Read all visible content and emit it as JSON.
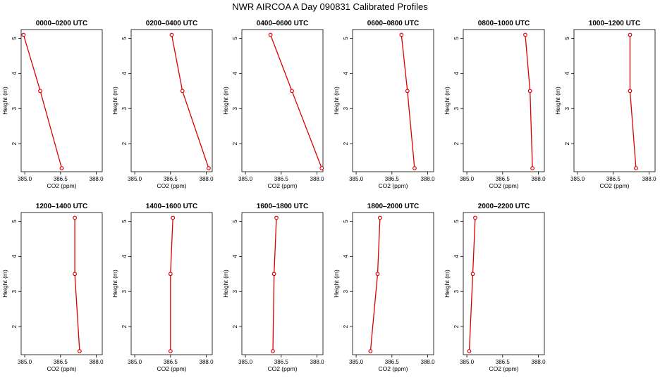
{
  "title": "NWR AIRCOA A  Day 090831  Calibrated Profiles",
  "colors": {
    "series": "#dd0000",
    "axis": "#000000"
  },
  "chart_data": [
    {
      "type": "line",
      "title": "0000–0200 UTC",
      "xlabel": "CO2 (ppm)",
      "ylabel": "Height (m)",
      "xlim": [
        384.85,
        388.25
      ],
      "ylim": [
        1.2,
        5.25
      ],
      "xticks": [
        "385.0",
        "386.5",
        "388.0"
      ],
      "yticks": [
        "2",
        "3",
        "4",
        "5"
      ],
      "x": [
        384.95,
        385.65,
        386.55
      ],
      "y": [
        5.1,
        3.5,
        1.3
      ]
    },
    {
      "type": "line",
      "title": "0200–0400 UTC",
      "xlabel": "CO2 (ppm)",
      "ylabel": "Height (m)",
      "xlim": [
        384.85,
        388.25
      ],
      "ylim": [
        1.2,
        5.25
      ],
      "xticks": [
        "385.0",
        "386.5",
        "388.0"
      ],
      "yticks": [
        "2",
        "3",
        "4",
        "5"
      ],
      "x": [
        386.55,
        387.0,
        388.1
      ],
      "y": [
        5.1,
        3.5,
        1.3
      ]
    },
    {
      "type": "line",
      "title": "0400–0600 UTC",
      "xlabel": "CO2 (ppm)",
      "ylabel": "Height (m)",
      "xlim": [
        384.85,
        388.25
      ],
      "ylim": [
        1.2,
        5.25
      ],
      "xticks": [
        "385.0",
        "386.5",
        "388.0"
      ],
      "yticks": [
        "2",
        "3",
        "4",
        "5"
      ],
      "x": [
        386.05,
        386.95,
        388.2
      ],
      "y": [
        5.1,
        3.5,
        1.3
      ]
    },
    {
      "type": "line",
      "title": "0600–0800 UTC",
      "xlabel": "CO2 (ppm)",
      "ylabel": "Height (m)",
      "xlim": [
        384.85,
        388.25
      ],
      "ylim": [
        1.2,
        5.25
      ],
      "xticks": [
        "385.0",
        "386.5",
        "388.0"
      ],
      "yticks": [
        "2",
        "3",
        "4",
        "5"
      ],
      "x": [
        386.9,
        387.15,
        387.45
      ],
      "y": [
        5.1,
        3.5,
        1.3
      ]
    },
    {
      "type": "line",
      "title": "0800–1000 UTC",
      "xlabel": "CO2 (ppm)",
      "ylabel": "Height (m)",
      "xlim": [
        384.85,
        388.25
      ],
      "ylim": [
        1.2,
        5.25
      ],
      "xticks": [
        "385.0",
        "386.5",
        "388.0"
      ],
      "yticks": [
        "2",
        "3",
        "4",
        "5"
      ],
      "x": [
        387.45,
        387.65,
        387.75
      ],
      "y": [
        5.1,
        3.5,
        1.3
      ]
    },
    {
      "type": "line",
      "title": "1000–1200 UTC",
      "xlabel": "CO2 (ppm)",
      "ylabel": "Height (m)",
      "xlim": [
        384.85,
        388.25
      ],
      "ylim": [
        1.2,
        5.25
      ],
      "xticks": [
        "385.0",
        "386.5",
        "388.0"
      ],
      "yticks": [
        "2",
        "3",
        "4",
        "5"
      ],
      "x": [
        387.2,
        387.2,
        387.45
      ],
      "y": [
        5.1,
        3.5,
        1.3
      ]
    },
    {
      "type": "line",
      "title": "1200–1400 UTC",
      "xlabel": "CO2 (ppm)",
      "ylabel": "Height (m)",
      "xlim": [
        384.85,
        388.25
      ],
      "ylim": [
        1.2,
        5.25
      ],
      "xticks": [
        "385.0",
        "386.5",
        "388.0"
      ],
      "yticks": [
        "2",
        "3",
        "4",
        "5"
      ],
      "x": [
        387.1,
        387.1,
        387.3
      ],
      "y": [
        5.1,
        3.5,
        1.3
      ]
    },
    {
      "type": "line",
      "title": "1400–1600 UTC",
      "xlabel": "CO2 (ppm)",
      "ylabel": "Height (m)",
      "xlim": [
        384.85,
        388.25
      ],
      "ylim": [
        1.2,
        5.25
      ],
      "xticks": [
        "385.0",
        "386.5",
        "388.0"
      ],
      "yticks": [
        "2",
        "3",
        "4",
        "5"
      ],
      "x": [
        386.6,
        386.5,
        386.5
      ],
      "y": [
        5.1,
        3.5,
        1.3
      ]
    },
    {
      "type": "line",
      "title": "1600–1800 UTC",
      "xlabel": "CO2 (ppm)",
      "ylabel": "Height (m)",
      "xlim": [
        384.85,
        388.25
      ],
      "ylim": [
        1.2,
        5.25
      ],
      "xticks": [
        "385.0",
        "386.5",
        "388.0"
      ],
      "yticks": [
        "2",
        "3",
        "4",
        "5"
      ],
      "x": [
        386.3,
        386.2,
        386.15
      ],
      "y": [
        5.1,
        3.5,
        1.3
      ]
    },
    {
      "type": "line",
      "title": "1800–2000 UTC",
      "xlabel": "CO2 (ppm)",
      "ylabel": "Height (m)",
      "xlim": [
        384.85,
        388.25
      ],
      "ylim": [
        1.2,
        5.25
      ],
      "xticks": [
        "385.0",
        "386.5",
        "388.0"
      ],
      "yticks": [
        "2",
        "3",
        "4",
        "5"
      ],
      "x": [
        386.0,
        385.9,
        385.6
      ],
      "y": [
        5.1,
        3.5,
        1.3
      ]
    },
    {
      "type": "line",
      "title": "2000–2200 UTC",
      "xlabel": "CO2 (ppm)",
      "ylabel": "Height (m)",
      "xlim": [
        384.85,
        388.25
      ],
      "ylim": [
        1.2,
        5.25
      ],
      "xticks": [
        "385.0",
        "386.5",
        "388.0"
      ],
      "yticks": [
        "2",
        "3",
        "4",
        "5"
      ],
      "x": [
        385.35,
        385.25,
        385.1
      ],
      "y": [
        5.1,
        3.5,
        1.3
      ]
    }
  ]
}
